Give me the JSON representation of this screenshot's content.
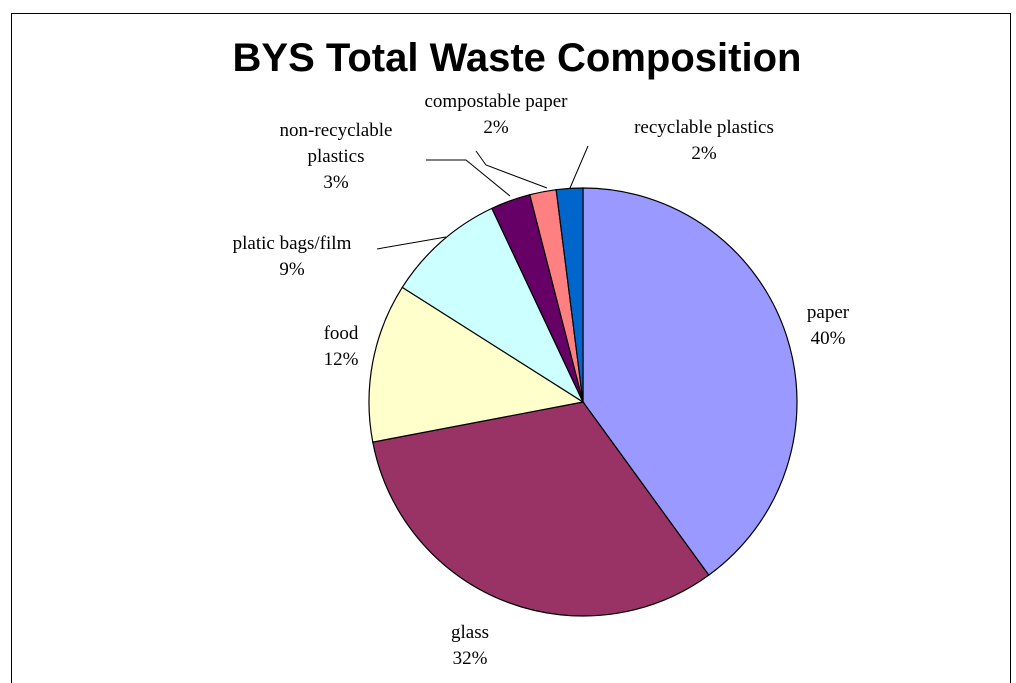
{
  "chart_data": {
    "type": "pie",
    "title": "BYS Total Waste Composition",
    "slices": [
      {
        "label_lines": [
          "paper"
        ],
        "value": 40,
        "percent": "40%",
        "color": "#9999FF"
      },
      {
        "label_lines": [
          "glass"
        ],
        "value": 32,
        "percent": "32%",
        "color": "#993366"
      },
      {
        "label_lines": [
          "food"
        ],
        "value": 12,
        "percent": "12%",
        "color": "#FFFFCC"
      },
      {
        "label_lines": [
          "platic bags/film"
        ],
        "value": 9,
        "percent": "9%",
        "color": "#CCFFFF"
      },
      {
        "label_lines": [
          "non-recyclable",
          "plastics"
        ],
        "value": 3,
        "percent": "3%",
        "color": "#660066"
      },
      {
        "label_lines": [
          "compostable paper"
        ],
        "value": 2,
        "percent": "2%",
        "color": "#FF8080"
      },
      {
        "label_lines": [
          "recyclable plastics"
        ],
        "value": 2,
        "percent": "2%",
        "color": "#0066CC"
      }
    ]
  }
}
